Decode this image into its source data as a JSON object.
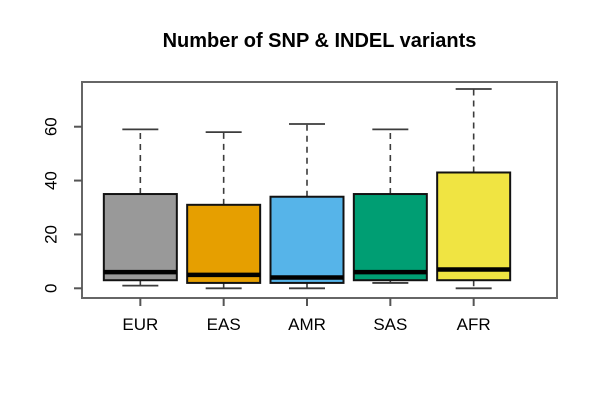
{
  "chart_data": {
    "type": "boxplot",
    "title": "Number of SNP & INDEL variants",
    "categories": [
      "EUR",
      "EAS",
      "AMR",
      "SAS",
      "AFR"
    ],
    "boxes": [
      {
        "label": "EUR",
        "color": "#999999",
        "min": 1,
        "q1": 3,
        "median": 6,
        "q3": 35,
        "max": 59
      },
      {
        "label": "EAS",
        "color": "#E69F00",
        "min": 0,
        "q1": 2,
        "median": 5,
        "q3": 31,
        "max": 58
      },
      {
        "label": "AMR",
        "color": "#56B4E9",
        "min": 0,
        "q1": 2,
        "median": 4,
        "q3": 34,
        "max": 61
      },
      {
        "label": "SAS",
        "color": "#009E73",
        "min": 2,
        "q1": 3,
        "median": 6,
        "q3": 35,
        "max": 59
      },
      {
        "label": "AFR",
        "color": "#F0E442",
        "min": 0,
        "q1": 3,
        "median": 7,
        "q3": 43,
        "max": 74
      }
    ],
    "yticks": [
      0,
      20,
      40,
      60
    ],
    "ylim": [
      -3.6,
      76.6
    ],
    "xlabel": "",
    "ylabel": "",
    "grid": false,
    "legend": null,
    "y_tick_label_rotation": 90,
    "colors": {
      "frame": "#666666",
      "tick": "#555555",
      "whisker": "#3c3c3c",
      "box_border": "#121212",
      "median": "#000000",
      "background": "#ffffff",
      "text": "#000000"
    }
  }
}
